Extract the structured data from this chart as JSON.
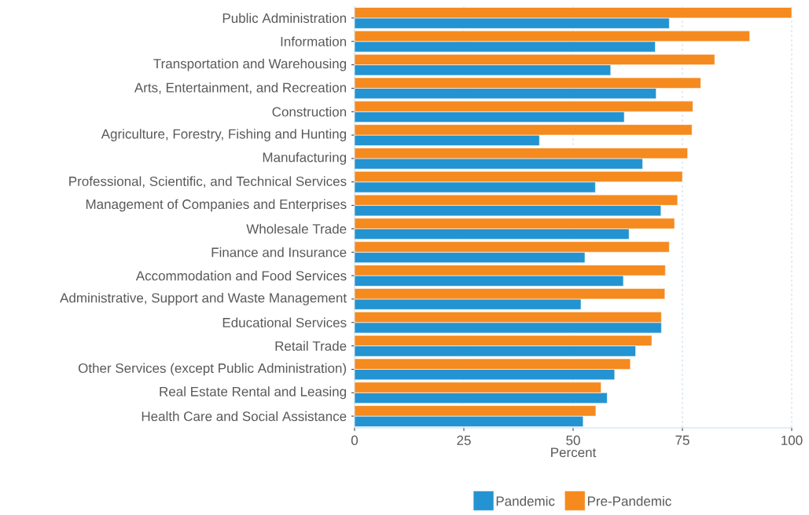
{
  "chart_data": {
    "type": "bar",
    "orientation": "horizontal",
    "xlabel": "Percent",
    "categories": [
      "Public Administration",
      "Information",
      "Transportation and Warehousing",
      "Arts, Entertainment, and Recreation",
      "Construction",
      "Agriculture, Forestry, Fishing and Hunting",
      "Manufacturing",
      "Professional, Scientific, and Technical Services",
      "Management of Companies and Enterprises",
      "Wholesale Trade",
      "Finance and Insurance",
      "Accommodation and Food Services",
      "Administrative, Support and Waste Management",
      "Educational Services",
      "Retail Trade",
      "Other Services (except Public Administration)",
      "Real Estate Rental and Leasing",
      "Health Care and Social Assistance"
    ],
    "series": [
      {
        "name": "Pandemic",
        "color": "#2493d1",
        "values": [
          72.0,
          68.8,
          58.6,
          69.0,
          61.7,
          42.3,
          65.9,
          55.1,
          70.1,
          62.8,
          52.7,
          61.5,
          51.8,
          70.2,
          64.3,
          59.5,
          57.8,
          52.3
        ]
      },
      {
        "name": "Pre-Pandemic",
        "color": "#f58a1f",
        "values": [
          100,
          90.4,
          82.4,
          79.2,
          77.4,
          77.2,
          76.2,
          75.0,
          73.9,
          73.2,
          72.0,
          71.1,
          71.0,
          70.2,
          68.0,
          63.1,
          56.4,
          55.2
        ]
      }
    ],
    "xlim": [
      0,
      100
    ],
    "xticks": [
      0,
      25,
      50,
      75,
      100
    ],
    "grid": "x",
    "legend": "bottom"
  }
}
